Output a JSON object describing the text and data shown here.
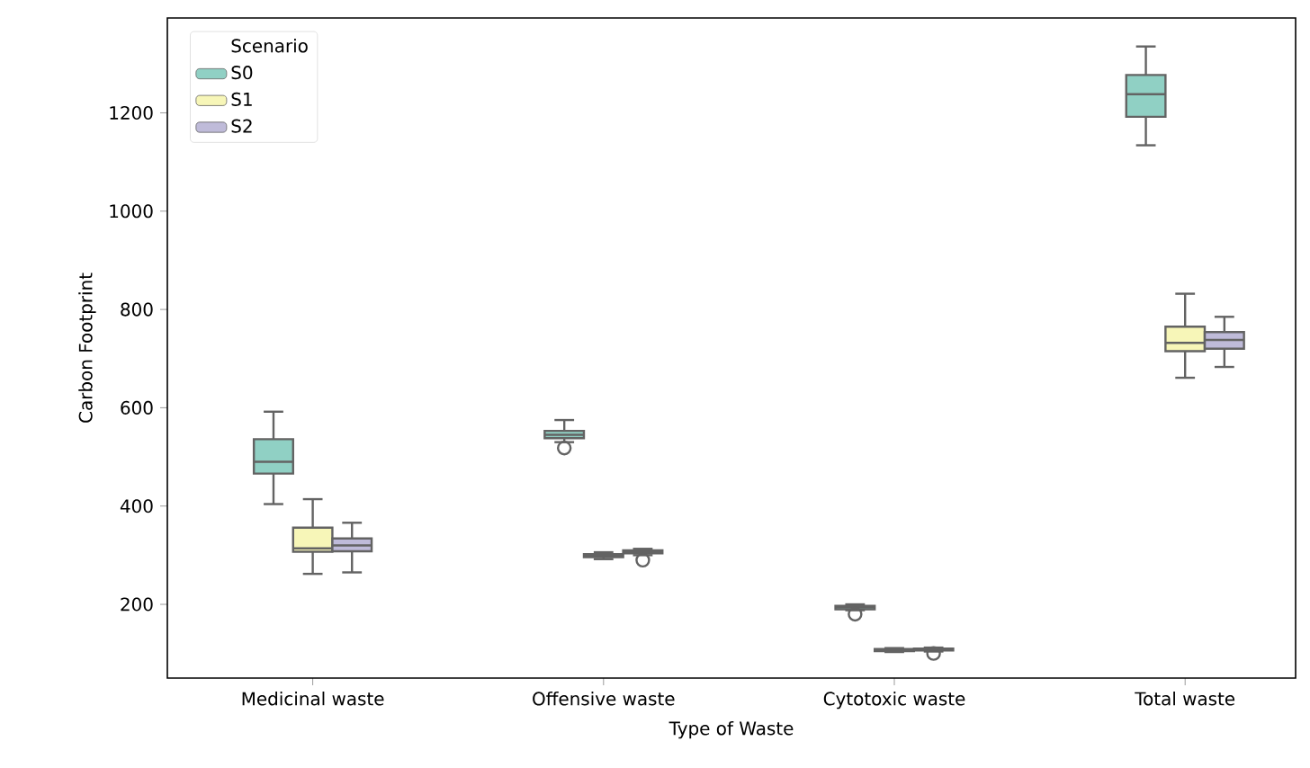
{
  "chart_data": {
    "type": "box",
    "xlabel": "Type of Waste",
    "ylabel": "Carbon Footprint",
    "legend_title": "Scenario",
    "legend": "top left",
    "categories": [
      "Medicinal waste",
      "Offensive waste",
      "Cytotoxic waste",
      "Total waste"
    ],
    "ylim": [
      50,
      1393
    ],
    "yticks": [
      200,
      400,
      600,
      800,
      1000,
      1200
    ],
    "series": [
      {
        "name": "S0",
        "color": "#90d0c4",
        "boxes": [
          {
            "low": 404,
            "q1": 466,
            "median": 490,
            "q3": 536,
            "high": 592
          },
          {
            "low": 530,
            "q1": 538,
            "median": 545,
            "q3": 553,
            "high": 575,
            "outliers": [
              518
            ]
          },
          {
            "low": 188,
            "q1": 190,
            "median": 194,
            "q3": 197,
            "high": 200,
            "outliers": [
              180
            ]
          },
          {
            "low": 1134,
            "q1": 1192,
            "median": 1238,
            "q3": 1277,
            "high": 1335
          }
        ]
      },
      {
        "name": "S1",
        "color": "#f7f6b8",
        "boxes": [
          {
            "low": 262,
            "q1": 307,
            "median": 314,
            "q3": 356,
            "high": 414
          },
          {
            "low": 292,
            "q1": 296,
            "median": 299,
            "q3": 302,
            "high": 306
          },
          {
            "low": 103,
            "q1": 105,
            "median": 107,
            "q3": 109,
            "high": 111
          },
          {
            "low": 661,
            "q1": 715,
            "median": 732,
            "q3": 765,
            "high": 832
          }
        ]
      },
      {
        "name": "S2",
        "color": "#bfbbd9",
        "boxes": [
          {
            "low": 265,
            "q1": 308,
            "median": 320,
            "q3": 334,
            "high": 366
          },
          {
            "low": 300,
            "q1": 304,
            "median": 307,
            "q3": 310,
            "high": 313,
            "outliers": [
              290
            ]
          },
          {
            "low": 104,
            "q1": 106,
            "median": 108,
            "q3": 110,
            "high": 112,
            "outliers": [
              100
            ]
          },
          {
            "low": 683,
            "q1": 720,
            "median": 738,
            "q3": 754,
            "high": 785
          }
        ]
      }
    ]
  }
}
